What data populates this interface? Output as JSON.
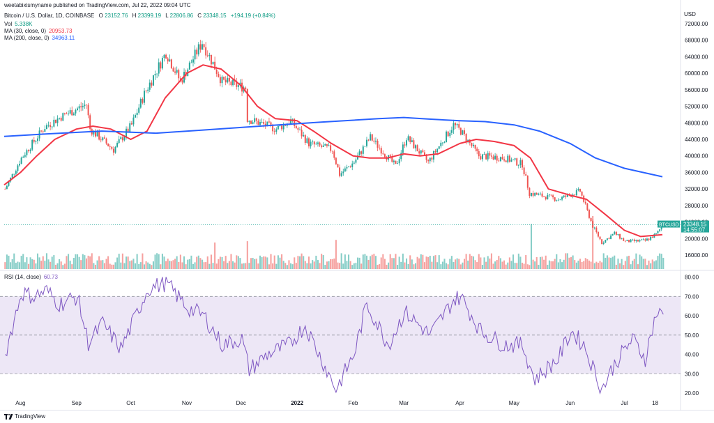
{
  "header": {
    "published": "weetabixismyname published on TradingView.com, Jul 22, 2022 09:04 UTC",
    "symbol": "Bitcoin / U.S. Dollar, 1D, COINBASE",
    "o": "23152.76",
    "h": "23399.19",
    "l": "22806.86",
    "c": "23348.15",
    "change": "+194.19 (+0.84%)",
    "vol_label": "Vol",
    "vol_value": "5.338K",
    "ma30_label": "MA (30, close, 0)",
    "ma30_value": "20953.73",
    "ma200_label": "MA (200, close, 0)",
    "ma200_value": "34963.11",
    "rsi_label": "RSI (14, close)",
    "rsi_value": "60.73"
  },
  "footer": {
    "brand": "TradingView"
  },
  "colors": {
    "up": "#26a69a",
    "down": "#ef5350",
    "ma30": "#f23645",
    "ma200": "#2962ff",
    "rsi": "#7e57c2",
    "rsi_band": "#ede7f6"
  },
  "chart_data": [
    {
      "type": "candlestick",
      "title": "Bitcoin / U.S. Dollar, 1D, COINBASE",
      "currency_label": "USD",
      "ylim": [
        14000,
        74000
      ],
      "y_ticks": [
        16000,
        20000,
        24000,
        28000,
        32000,
        36000,
        40000,
        44000,
        48000,
        52000,
        56000,
        60000,
        64000,
        68000,
        72000
      ],
      "x_ticks": [
        "Aug",
        "Sep",
        "Oct",
        "Nov",
        "Dec",
        "2022",
        "Feb",
        "Mar",
        "Apr",
        "May",
        "Jun",
        "Jul",
        "18"
      ],
      "price_label": {
        "symbol": "BTCUSD",
        "price": "23348.15",
        "countdown": "14:55:07"
      },
      "series": [
        {
          "name": "MA (30, close, 0)",
          "type": "line",
          "x": [
            "2021-07-23",
            "2021-08-01",
            "2021-08-10",
            "2021-08-20",
            "2021-09-01",
            "2021-09-10",
            "2021-09-20",
            "2021-10-01",
            "2021-10-10",
            "2021-10-20",
            "2021-11-01",
            "2021-11-10",
            "2021-11-20",
            "2021-12-01",
            "2021-12-10",
            "2021-12-20",
            "2022-01-01",
            "2022-01-10",
            "2022-01-20",
            "2022-02-01",
            "2022-02-10",
            "2022-02-20",
            "2022-03-01",
            "2022-03-10",
            "2022-03-20",
            "2022-04-01",
            "2022-04-10",
            "2022-04-20",
            "2022-05-01",
            "2022-05-10",
            "2022-05-20",
            "2022-06-01",
            "2022-06-10",
            "2022-06-20",
            "2022-07-01",
            "2022-07-10",
            "2022-07-22"
          ],
          "y": [
            33000,
            36000,
            40000,
            44000,
            46500,
            47200,
            46500,
            44000,
            46000,
            54000,
            60000,
            62000,
            61000,
            57000,
            52000,
            49000,
            48500,
            46000,
            43000,
            40000,
            39500,
            39500,
            40500,
            40000,
            40500,
            43000,
            44000,
            43500,
            42500,
            39500,
            32000,
            30500,
            29500,
            26000,
            22000,
            20500,
            20950
          ]
        },
        {
          "name": "MA (200, close, 0)",
          "type": "line",
          "x": [
            "2021-07-23",
            "2021-08-15",
            "2021-09-15",
            "2021-10-15",
            "2021-11-15",
            "2021-12-15",
            "2022-01-15",
            "2022-02-15",
            "2022-03-01",
            "2022-03-15",
            "2022-04-01",
            "2022-04-15",
            "2022-05-01",
            "2022-05-15",
            "2022-06-01",
            "2022-06-15",
            "2022-07-01",
            "2022-07-22"
          ],
          "y": [
            44700,
            45300,
            46000,
            45500,
            46400,
            47300,
            48200,
            49000,
            49300,
            48900,
            48500,
            48300,
            47500,
            46000,
            43000,
            39500,
            37000,
            34960
          ]
        }
      ]
    },
    {
      "type": "bar",
      "title": "Vol",
      "note": "daily volume histogram (values in K)",
      "peak_values": {
        "2022-05-10": 34,
        "2022-06-13": 40,
        "2022-01-22": 22,
        "2021-12-04": 21,
        "2021-11-16": 20
      }
    },
    {
      "type": "line",
      "title": "RSI (14, close)",
      "ylim": [
        15,
        82
      ],
      "y_ticks": [
        20,
        30,
        40,
        50,
        60,
        70,
        80
      ],
      "bands": [
        30,
        50,
        70
      ],
      "series": [
        {
          "name": "RSI",
          "x": [
            "2021-07-23",
            "2021-08-01",
            "2021-08-08",
            "2021-08-15",
            "2021-08-22",
            "2021-09-01",
            "2021-09-07",
            "2021-09-15",
            "2021-09-25",
            "2021-10-01",
            "2021-10-10",
            "2021-10-20",
            "2021-11-01",
            "2021-11-10",
            "2021-11-20",
            "2021-12-01",
            "2021-12-05",
            "2021-12-15",
            "2021-12-27",
            "2022-01-05",
            "2022-01-22",
            "2022-02-01",
            "2022-02-08",
            "2022-02-20",
            "2022-03-01",
            "2022-03-15",
            "2022-03-28",
            "2022-04-01",
            "2022-04-12",
            "2022-04-25",
            "2022-05-05",
            "2022-05-12",
            "2022-05-25",
            "2022-06-01",
            "2022-06-08",
            "2022-06-18",
            "2022-06-25",
            "2022-07-05",
            "2022-07-12",
            "2022-07-18",
            "2022-07-22"
          ],
          "y": [
            40,
            72,
            70,
            73,
            66,
            70,
            46,
            56,
            43,
            55,
            74,
            77,
            64,
            60,
            45,
            48,
            32,
            40,
            45,
            55,
            22,
            40,
            66,
            45,
            62,
            50,
            68,
            70,
            52,
            45,
            45,
            27,
            38,
            52,
            45,
            22,
            35,
            48,
            38,
            61,
            60.7
          ]
        }
      ]
    }
  ]
}
